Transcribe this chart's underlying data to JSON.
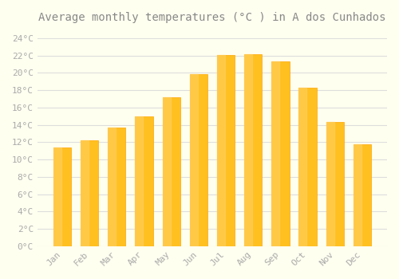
{
  "title": "Average monthly temperatures (°C ) in A dos Cunhados",
  "months": [
    "Jan",
    "Feb",
    "Mar",
    "Apr",
    "May",
    "Jun",
    "Jul",
    "Aug",
    "Sep",
    "Oct",
    "Nov",
    "Dec"
  ],
  "values": [
    11.4,
    12.2,
    13.7,
    15.0,
    17.2,
    19.9,
    22.1,
    22.2,
    21.3,
    18.3,
    14.3,
    11.8
  ],
  "bar_color_main": "#FFC020",
  "bar_color_edge": "#FFA500",
  "bar_color_gradient_top": "#FFD060",
  "background_color": "#FFFFF0",
  "grid_color": "#DDDDDD",
  "text_color": "#AAAAAA",
  "title_color": "#888888",
  "ylim": [
    0,
    25
  ],
  "yticks": [
    0,
    2,
    4,
    6,
    8,
    10,
    12,
    14,
    16,
    18,
    20,
    22,
    24
  ],
  "ytick_labels": [
    "0°C",
    "2°C",
    "4°C",
    "6°C",
    "8°C",
    "10°C",
    "12°C",
    "14°C",
    "16°C",
    "18°C",
    "20°C",
    "22°C",
    "24°C"
  ],
  "font_family": "monospace",
  "title_fontsize": 10,
  "tick_fontsize": 8
}
